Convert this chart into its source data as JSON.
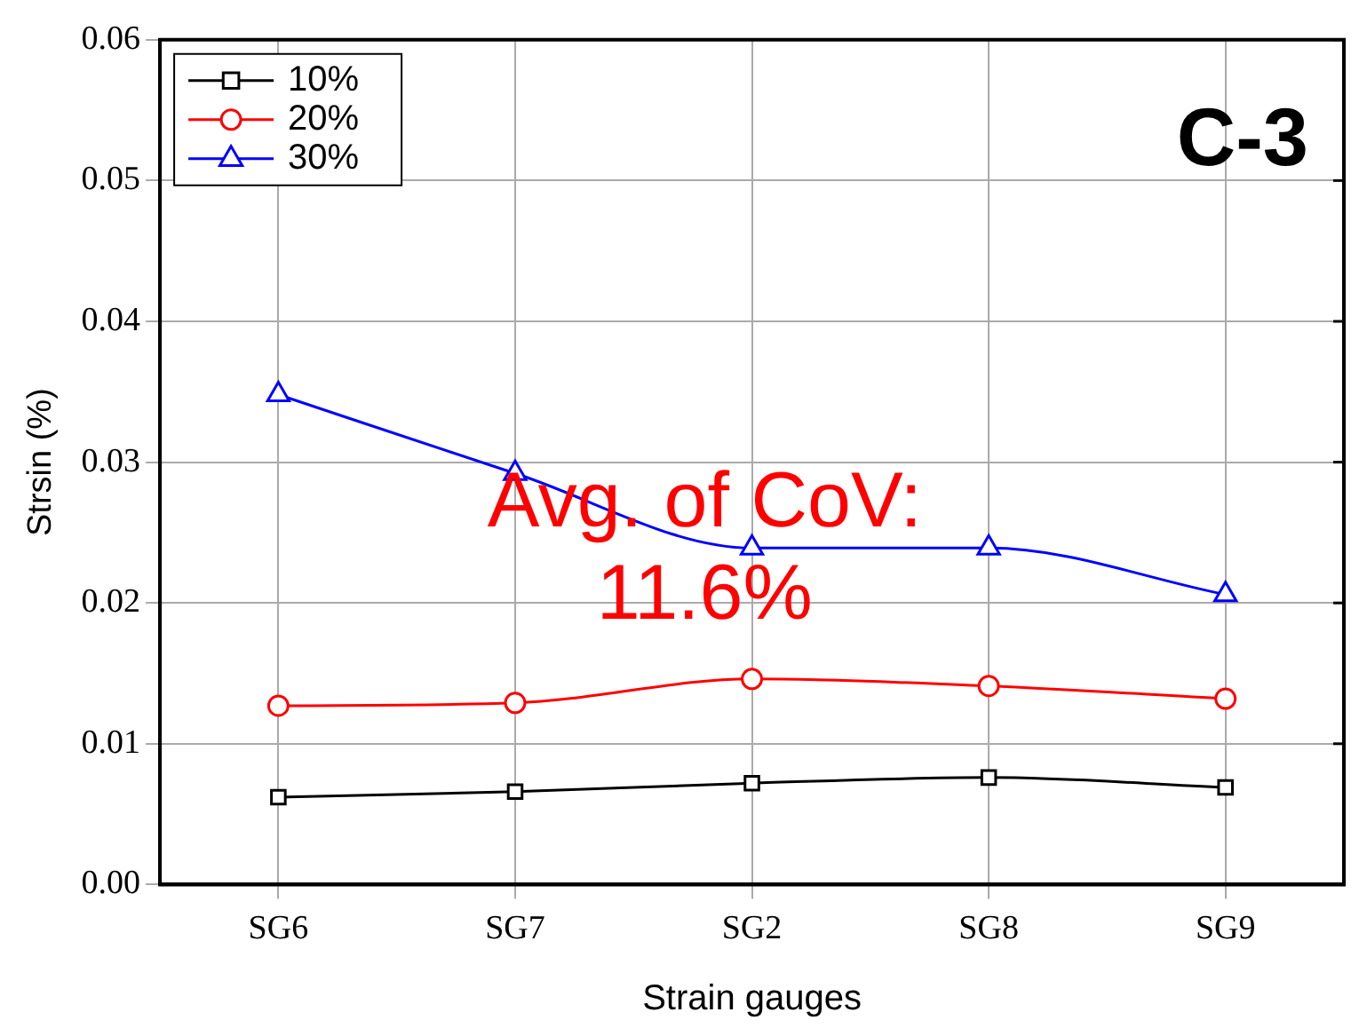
{
  "chart_data": {
    "type": "line",
    "xlabel": "Strain gauges",
    "ylabel": "Strsin (%)",
    "categories": [
      "SG6",
      "SG7",
      "SG2",
      "SG8",
      "SG9"
    ],
    "series": [
      {
        "name": "10%",
        "color": "#000000",
        "marker": "square",
        "values": [
          0.0062,
          0.0066,
          0.0072,
          0.0076,
          0.0069
        ]
      },
      {
        "name": "20%",
        "color": "#ff0000",
        "marker": "circle",
        "values": [
          0.0127,
          0.0129,
          0.0146,
          0.0141,
          0.0132
        ]
      },
      {
        "name": "30%",
        "color": "#0000ff",
        "marker": "triangle",
        "values": [
          0.0348,
          0.0292,
          0.0239,
          0.0239,
          0.0206
        ]
      }
    ],
    "ylim": [
      0,
      0.06
    ],
    "yticks": [
      {
        "value": 0,
        "label": "0.00"
      },
      {
        "value": 0.01,
        "label": "0.01"
      },
      {
        "value": 0.02,
        "label": "0.02"
      },
      {
        "value": 0.03,
        "label": "0.03"
      },
      {
        "value": 0.04,
        "label": "0.04"
      },
      {
        "value": 0.05,
        "label": "0.05"
      },
      {
        "value": 0.06,
        "label": "0.06"
      }
    ],
    "grid": true,
    "legend": "top left",
    "line_style": "solid",
    "annotations": [
      "C-3",
      "Avg. of CoV:\n11.6%"
    ]
  }
}
